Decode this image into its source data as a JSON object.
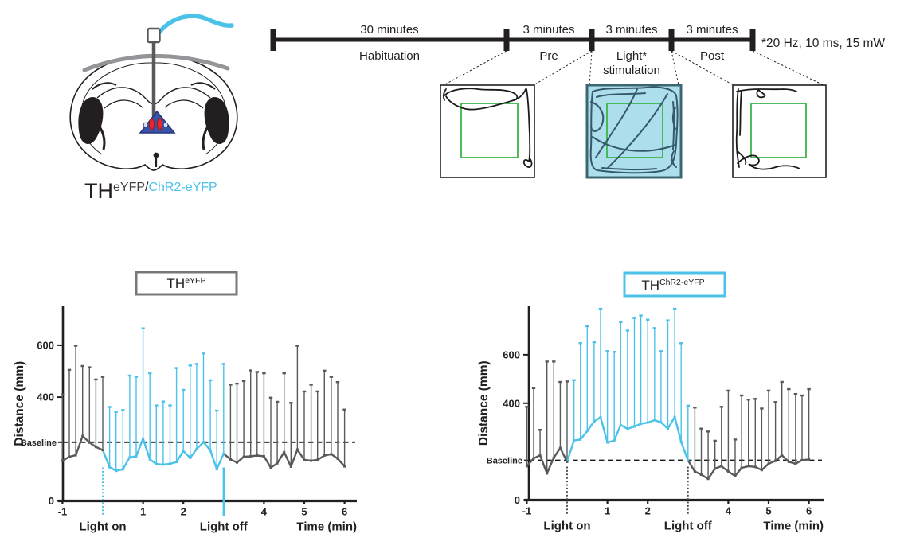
{
  "colors": {
    "accent_cyan": "#4BC2E8",
    "line_gray": "#58595B",
    "ink": "#231F20",
    "zone_green": "#3CB54A",
    "stim_field_fill": "#ACDEEB",
    "stim_field_trace": "#35596B",
    "triangle_blue": "#3A53A4",
    "nucleus_red": "#E8262D",
    "skull_gray": "#939598",
    "title_gray": "#77787B"
  },
  "construct_label": {
    "main": "TH",
    "sup_gray": "eYFP",
    "sep": "/",
    "sup_cyan": "ChR2-eYFP"
  },
  "timeline": {
    "segments": [
      {
        "duration": "30 minutes",
        "phase": "Habituation"
      },
      {
        "duration": "3 minutes",
        "phase": "Pre"
      },
      {
        "duration": "3 minutes",
        "phase": "Light*",
        "phase2": "stimulation"
      },
      {
        "duration": "3 minutes",
        "phase": "Post"
      }
    ],
    "note": "*20 Hz, 10 ms, 15 mW"
  },
  "chart_data": [
    {
      "type": "line",
      "title_main": "TH",
      "title_sup": "eYFP",
      "title_color": "#77787B",
      "ylabel": "Distance (mm)",
      "xlabel": "Time (min)",
      "x_ticks": [
        -1,
        1,
        2,
        4,
        5,
        6
      ],
      "y_ticks": [
        0,
        400,
        600
      ],
      "ylim": [
        0,
        750
      ],
      "xlim": [
        -1.1,
        6.3
      ],
      "grid": false,
      "baseline": {
        "label": "Baseline",
        "value": 226
      },
      "light_on": {
        "label": "Light on",
        "x": 0
      },
      "light_off": {
        "label": "Light off",
        "x": 3
      },
      "light_on_marker": {
        "color": "#4BC2E8",
        "style": "dotted"
      },
      "light_off_marker": {
        "color": "#4BC2E8",
        "style": "solid"
      },
      "base_color": "#58595B",
      "stim_color": "#4BC2E8",
      "stim_range": [
        6,
        24
      ],
      "x": [
        -1,
        -0.83,
        -0.67,
        -0.5,
        -0.33,
        -0.17,
        0,
        0.17,
        0.33,
        0.5,
        0.67,
        0.83,
        1,
        1.17,
        1.33,
        1.5,
        1.67,
        1.83,
        2,
        2.17,
        2.33,
        2.5,
        2.67,
        2.83,
        3,
        3.17,
        3.33,
        3.5,
        3.67,
        3.83,
        4,
        4.17,
        4.33,
        4.5,
        4.67,
        4.83,
        5,
        5.17,
        5.33,
        5.5,
        5.67,
        5.83,
        6
      ],
      "mean": [
        155,
        170,
        176,
        250,
        225,
        208,
        196,
        130,
        116,
        122,
        168,
        172,
        240,
        160,
        142,
        140,
        143,
        150,
        192,
        166,
        200,
        226,
        195,
        122,
        182,
        160,
        148,
        170,
        172,
        175,
        172,
        128,
        145,
        188,
        132,
        198,
        158,
        155,
        158,
        175,
        180,
        163,
        133
      ],
      "err_top": [
        410,
        505,
        598,
        520,
        515,
        468,
        478,
        362,
        343,
        350,
        483,
        478,
        665,
        492,
        368,
        383,
        368,
        512,
        428,
        522,
        528,
        568,
        465,
        348,
        528,
        448,
        452,
        462,
        503,
        497,
        492,
        398,
        382,
        492,
        378,
        598,
        422,
        448,
        422,
        502,
        478,
        458,
        352
      ]
    },
    {
      "type": "line",
      "title_main": "TH",
      "title_sup": "ChR2-eYFP",
      "title_color": "#4BC2E8",
      "ylabel": "Distance (mm)",
      "xlabel": "Time (min)",
      "x_ticks": [
        -1,
        1,
        2,
        4,
        5,
        6
      ],
      "y_ticks": [
        0,
        400,
        600
      ],
      "ylim": [
        0,
        800
      ],
      "xlim": [
        -1.1,
        6.3
      ],
      "grid": false,
      "baseline": {
        "label": "Baseline",
        "value": 164
      },
      "light_on": {
        "label": "Light on",
        "x": 0
      },
      "light_off": {
        "label": "Light off",
        "x": 3
      },
      "light_on_marker": {
        "color": "#4D4D4F",
        "style": "dotted"
      },
      "light_off_marker": {
        "color": "#4D4D4F",
        "style": "dotted"
      },
      "base_color": "#58595B",
      "stim_color": "#4BC2E8",
      "stim_range": [
        6,
        24
      ],
      "x": [
        -1,
        -0.83,
        -0.67,
        -0.5,
        -0.33,
        -0.17,
        0,
        0.17,
        0.33,
        0.5,
        0.67,
        0.83,
        1,
        1.17,
        1.33,
        1.5,
        1.67,
        1.83,
        2,
        2.17,
        2.33,
        2.5,
        2.67,
        2.83,
        3,
        3.17,
        3.33,
        3.5,
        3.67,
        3.83,
        4,
        4.17,
        4.33,
        4.5,
        4.67,
        4.83,
        5,
        5.17,
        5.33,
        5.5,
        5.67,
        5.83,
        6
      ],
      "mean": [
        140,
        172,
        185,
        110,
        175,
        215,
        158,
        246,
        250,
        285,
        325,
        342,
        238,
        246,
        310,
        294,
        304,
        315,
        320,
        330,
        321,
        295,
        343,
        240,
        164,
        118,
        105,
        88,
        130,
        140,
        118,
        100,
        133,
        140,
        137,
        124,
        150,
        162,
        185,
        158,
        150,
        165,
        168
      ],
      "err_top": [
        385,
        462,
        290,
        572,
        572,
        488,
        490,
        495,
        648,
        718,
        652,
        790,
        615,
        612,
        735,
        700,
        752,
        762,
        745,
        710,
        615,
        742,
        790,
        648,
        390,
        382,
        295,
        283,
        245,
        385,
        452,
        250,
        432,
        415,
        418,
        378,
        452,
        405,
        488,
        458,
        438,
        432,
        458
      ]
    }
  ]
}
